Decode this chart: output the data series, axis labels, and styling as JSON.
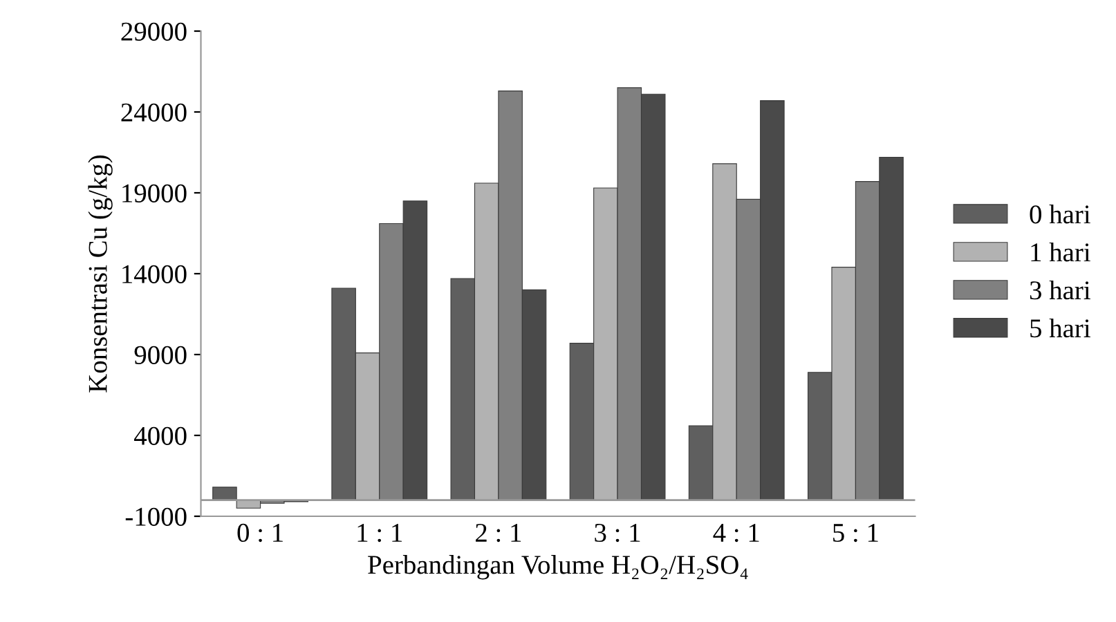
{
  "chart_data": {
    "type": "bar",
    "xlabel": "Perbandingan Volume H₂O₂/H₂SO₄",
    "ylabel": "Konsentrasi Cu (g/kg)",
    "categories": [
      "0 : 1",
      "1 : 1",
      "2 : 1",
      "3 : 1",
      "4 : 1",
      "5 : 1"
    ],
    "series": [
      {
        "name": "0 hari",
        "color": "#5f5f5f",
        "values": [
          800,
          13100,
          13700,
          9700,
          4600,
          7900
        ]
      },
      {
        "name": "1 hari",
        "color": "#b2b2b2",
        "values": [
          -500,
          9100,
          19600,
          19300,
          20800,
          14400
        ]
      },
      {
        "name": "3 hari",
        "color": "#808080",
        "values": [
          -200,
          17100,
          25300,
          25500,
          18600,
          19700
        ]
      },
      {
        "name": "5 hari",
        "color": "#4a4a4a",
        "values": [
          -100,
          18500,
          13000,
          25100,
          24700,
          21200
        ]
      }
    ],
    "ylim": [
      -1000,
      29000
    ],
    "yticks": [
      -1000,
      4000,
      9000,
      14000,
      19000,
      24000,
      29000
    ],
    "grid": false,
    "legend": "right"
  }
}
